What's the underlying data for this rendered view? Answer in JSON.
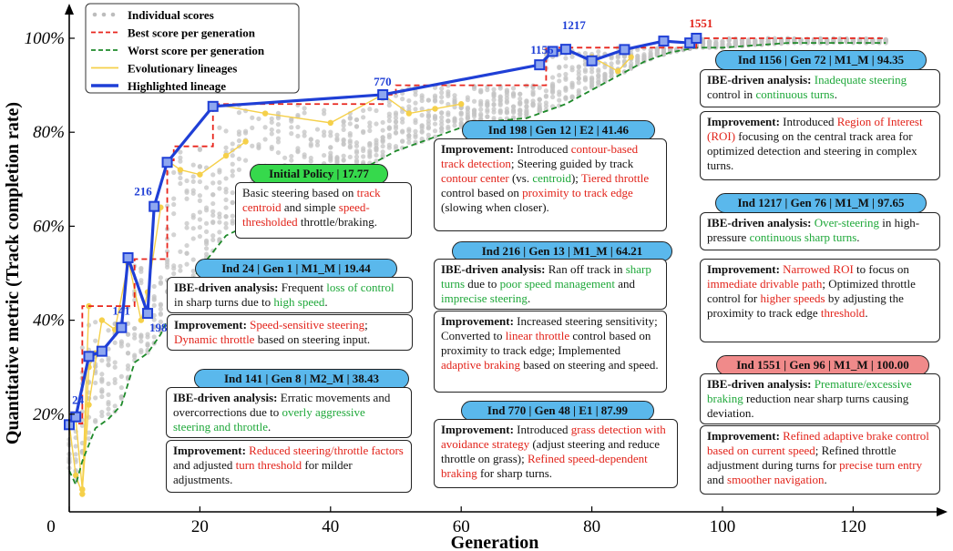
{
  "chart_data": {
    "type": "scatter",
    "xlabel": "Generation",
    "ylabel": "Quantitative metric (Track completion rate)",
    "xlim": [
      0,
      130
    ],
    "ylim": [
      0,
      105
    ],
    "x_ticks": [
      "0",
      "20",
      "40",
      "60",
      "80",
      "100",
      "120"
    ],
    "y_ticks": [
      "20%",
      "40%",
      "60%",
      "80%",
      "100%"
    ],
    "legend_position": "top-left",
    "legend": [
      {
        "label": "Individual scores",
        "color": "#bdbdbd",
        "style": "dot"
      },
      {
        "label": "Best score per generation",
        "color": "#e8251c",
        "style": "dashed"
      },
      {
        "label": "Worst score per generation",
        "color": "#1e8a2a",
        "style": "dashed"
      },
      {
        "label": "Evolutionary lineages",
        "color": "#f5d04a",
        "style": "solid"
      },
      {
        "label": "Highlighted lineage",
        "color": "#1f3fd6",
        "style": "solid-bold"
      }
    ],
    "series": [
      {
        "name": "Best score per generation",
        "x": [
          0,
          2,
          3,
          9,
          10,
          12,
          15,
          16,
          22,
          48,
          50,
          72,
          73,
          95,
          96,
          125
        ],
        "y": [
          18,
          43,
          43,
          43,
          53,
          53,
          74,
          77,
          86,
          88,
          90,
          90,
          98,
          98,
          100,
          100
        ]
      },
      {
        "name": "Worst score per generation",
        "x": [
          0,
          1,
          2,
          4,
          6,
          8,
          10,
          12,
          14,
          16,
          20,
          24,
          30,
          40,
          46,
          50,
          56,
          62,
          70,
          76,
          80,
          84,
          88,
          92,
          96,
          100,
          110,
          125
        ],
        "y": [
          8,
          5,
          10,
          17,
          19,
          22,
          31,
          33,
          37,
          43,
          51,
          58,
          62,
          68,
          73,
          76,
          79,
          82,
          83,
          86,
          89,
          92,
          95,
          97,
          98,
          98,
          99,
          99
        ]
      },
      {
        "name": "Highlighted lineage",
        "x": [
          0,
          1,
          3,
          5,
          8,
          9,
          12,
          13,
          15,
          22,
          48,
          72,
          74,
          76,
          80,
          85,
          91,
          95,
          96
        ],
        "y": [
          17.77,
          19.44,
          32.3,
          33.4,
          38.43,
          53.3,
          41.46,
          64.21,
          73.6,
          85.5,
          87.99,
          94.35,
          97.2,
          97.65,
          95.2,
          97.6,
          99.4,
          99.0,
          100.0
        ]
      }
    ],
    "lineages": [
      {
        "x": [
          0,
          1,
          2,
          3
        ],
        "y": [
          18,
          7,
          3,
          43
        ]
      },
      {
        "x": [
          1,
          2,
          3,
          4
        ],
        "y": [
          19,
          4,
          30,
          33
        ]
      },
      {
        "x": [
          2,
          3,
          5,
          7,
          9
        ],
        "y": [
          4,
          22,
          40,
          38,
          52
        ]
      },
      {
        "x": [
          9,
          11,
          12,
          14
        ],
        "y": [
          53,
          40,
          46,
          64
        ]
      },
      {
        "x": [
          15,
          17,
          20,
          24,
          27
        ],
        "y": [
          74,
          72,
          71,
          75,
          78
        ]
      },
      {
        "x": [
          22,
          30,
          40,
          48
        ],
        "y": [
          86,
          84,
          82,
          88
        ]
      },
      {
        "x": [
          48,
          52,
          56,
          60
        ],
        "y": [
          88,
          84,
          85,
          86
        ]
      },
      {
        "x": [
          80,
          84,
          86
        ],
        "y": [
          96,
          93,
          96
        ]
      }
    ],
    "point_labels": [
      {
        "text": "24",
        "x": 1,
        "y": 19.44,
        "color": "#1f3fd6"
      },
      {
        "text": "141",
        "x": 8,
        "y": 38.43,
        "color": "#1f3fd6"
      },
      {
        "text": "198",
        "x": 12,
        "y": 41.46,
        "color": "#1f3fd6"
      },
      {
        "text": "216",
        "x": 13,
        "y": 64.21,
        "color": "#1f3fd6"
      },
      {
        "text": "770",
        "x": 48,
        "y": 87.99,
        "color": "#1f3fd6"
      },
      {
        "text": "1156",
        "x": 72,
        "y": 94.35,
        "color": "#1f3fd6"
      },
      {
        "text": "1217",
        "x": 76,
        "y": 97.65,
        "color": "#1f3fd6"
      },
      {
        "text": "1551",
        "x": 96,
        "y": 100.0,
        "color": "#e2231a"
      }
    ]
  },
  "annotations": {
    "initial": {
      "header": "Initial Policy | 17.77",
      "header_color": "#36d94c",
      "t1": "Basic steering based on ",
      "t2": "track centroid",
      "t3": " and simple ",
      "t4": "speed-thresholded",
      "t5": " throttle/braking."
    },
    "ind24": {
      "header": "Ind 24 | Gen 1 | M1_M | 19.44",
      "header_color": "#5ab8ec",
      "a_lead": "IBE-driven analysis:",
      "a1": " Frequent ",
      "a2": "loss of control",
      "a3": " in sharp turns due to ",
      "a4": "high speed",
      "a5": ".",
      "i_lead": "Improvement:",
      "i1": " ",
      "i2": "Speed-sensitive steering",
      "i3": "; ",
      "i4": "Dynamic throttle",
      "i5": " based on steering input."
    },
    "ind141": {
      "header": "Ind 141 | Gen 8 | M2_M | 38.43",
      "header_color": "#5ab8ec",
      "a_lead": "IBE-driven analysis:",
      "a1": " Erratic movements and overcorrections due to ",
      "a2": "overly aggressive steering and throttle",
      "a3": ".",
      "i_lead": "Improvement:",
      "i1": " ",
      "i2": "Reduced steering/throttle factors",
      "i3": " and adjusted ",
      "i4": "turn threshold",
      "i5": " for milder adjustments."
    },
    "ind198": {
      "header": "Ind 198 | Gen 12 | E2 | 41.46",
      "header_color": "#5ab8ec",
      "i_lead": "Improvement:",
      "i1": " Introduced ",
      "i2": "contour-based track detection",
      "i3": "; Steering guided by track ",
      "i4": "contour center",
      "i5": " (vs. ",
      "i6": "centroid",
      "i7": "); ",
      "i8": "Tiered throttle",
      "i9": " control based on ",
      "i10": "proximity to track edge",
      "i11": " (slowing when closer)."
    },
    "ind216": {
      "header": "Ind 216 | Gen 13 | M1_M | 64.21",
      "header_color": "#5ab8ec",
      "a_lead": "IBE-driven analysis:",
      "a1": " Ran off track in ",
      "a2": "sharp turns",
      "a3": " due to ",
      "a4": "poor speed management",
      "a5": " and ",
      "a6": "imprecise steering",
      "a7": ".",
      "i_lead": "Improvement:",
      "i1": " Increased steering sensitivity; Converted to ",
      "i2": "linear throttle",
      "i3": " control based on proximity to track edge; Implemented ",
      "i4": "adaptive braking",
      "i5": " based on steering and speed."
    },
    "ind770": {
      "header": "Ind 770 | Gen 48 | E1 | 87.99",
      "header_color": "#5ab8ec",
      "i_lead": "Improvement:",
      "i1": " Introduced ",
      "i2": "grass detection with avoidance strategy",
      "i3": " (adjust steering and reduce throttle on grass); ",
      "i4": "Refined speed-dependent braking",
      "i5": " for sharp turns."
    },
    "ind1156": {
      "header": "Ind 1156 | Gen 72 | M1_M | 94.35",
      "header_color": "#5ab8ec",
      "a_lead": "IBE-driven analysis:",
      "a1": " ",
      "a2": "Inadequate steering",
      "a3": " control in ",
      "a4": "continuous turns",
      "a5": ".",
      "i_lead": "Improvement:",
      "i1": " Introduced ",
      "i2": "Region of Interest (ROI)",
      "i3": " focusing on the central track area for optimized detection and steering in complex turns."
    },
    "ind1217": {
      "header": "Ind 1217 | Gen 76 | M1_M | 97.65",
      "header_color": "#5ab8ec",
      "a_lead": "IBE-driven analysis:",
      "a1": " ",
      "a2": "Over-steering",
      "a3": " in high-pressure ",
      "a4": "continuous sharp turns",
      "a5": ".",
      "i_lead": "Improvement:",
      "i1": " ",
      "i2": "Narrowed ROI",
      "i3": " to focus on ",
      "i4": "immediate drivable path",
      "i5": "; Optimized throttle control for ",
      "i6": "higher speeds",
      "i7": " by adjusting the proximity to track edge ",
      "i8": "threshold",
      "i9": "."
    },
    "ind1551": {
      "header": "Ind 1551 | Gen 96 | M1_M | 100.00",
      "header_color": "#f08a8a",
      "a_lead": "IBE-driven analysis:",
      "a1": " ",
      "a2": "Premature/excessive braking",
      "a3": " reduction near sharp turns causing deviation.",
      "i_lead": "Improvement:",
      "i1": " ",
      "i2": "Refined adaptive brake control based on current speed",
      "i3": "; Refined throttle adjustment during turns for ",
      "i4": "precise turn entry",
      "i5": " and ",
      "i6": "smoother navigation",
      "i7": "."
    }
  }
}
